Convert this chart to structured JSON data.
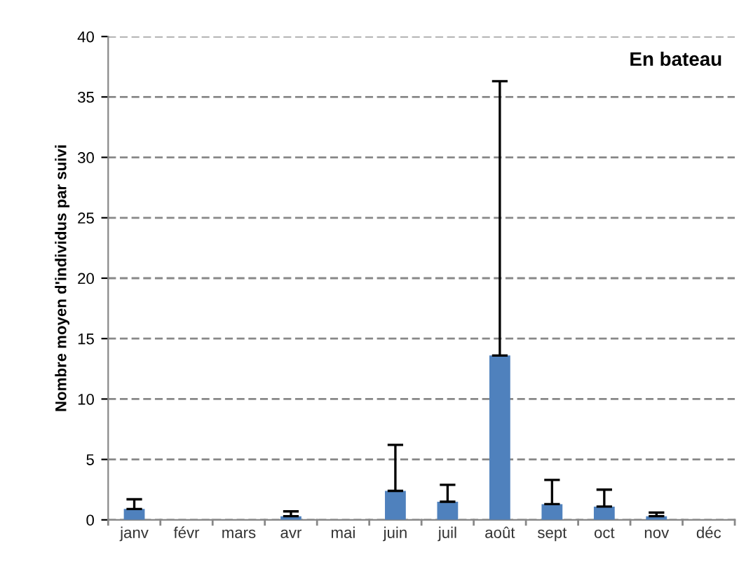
{
  "chart_data": {
    "type": "bar",
    "title": "En bateau",
    "ylabel": "Nombre moyen d'individus par suivi",
    "categories": [
      "janv",
      "févr",
      "mars",
      "avr",
      "mai",
      "juin",
      "juil",
      "août",
      "sept",
      "oct",
      "nov",
      "déc"
    ],
    "values": [
      0.9,
      0,
      0,
      0.3,
      0,
      2.4,
      1.5,
      13.6,
      1.3,
      1.1,
      0.3,
      0
    ],
    "errors": [
      [
        0.9,
        1.7
      ],
      null,
      null,
      [
        0.3,
        0.7
      ],
      null,
      [
        2.4,
        6.2
      ],
      [
        1.5,
        2.9
      ],
      [
        13.6,
        36.3
      ],
      [
        1.3,
        3.3
      ],
      [
        1.1,
        2.5
      ],
      [
        0.3,
        0.6
      ],
      null
    ],
    "color": "#4f81bd",
    "ylim": [
      0,
      40
    ],
    "yticks": [
      0,
      5,
      10,
      15,
      20,
      25,
      30,
      35,
      40
    ],
    "grid": "y"
  }
}
